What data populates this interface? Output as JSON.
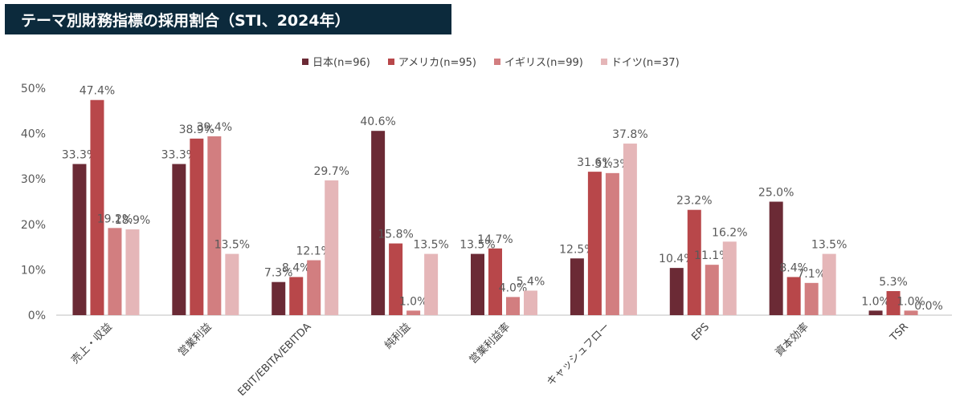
{
  "title": "テーマ別財務指標の採用割合（STI、2024年）",
  "chart_data": {
    "type": "bar",
    "title": "テーマ別財務指標の採用割合（STI、2024年）",
    "categories": [
      "売上・収益",
      "営業利益",
      "EBIT/EBITA/EBITDA",
      "純利益",
      "営業利益率",
      "キャッシュフロー",
      "EPS",
      "資本効率",
      "TSR"
    ],
    "ylim": [
      0,
      50
    ],
    "yticks": [
      "0%",
      "10%",
      "20%",
      "30%",
      "40%",
      "50%"
    ],
    "legend_position": "top",
    "series": [
      {
        "name": "日本(n=96)",
        "color": "#6b2a35",
        "values": [
          33.3,
          33.3,
          7.3,
          40.6,
          13.5,
          12.5,
          10.4,
          25.0,
          1.0
        ]
      },
      {
        "name": "アメリカ(n=95)",
        "color": "#b8474a",
        "values": [
          47.4,
          38.9,
          8.4,
          15.8,
          14.7,
          31.6,
          23.2,
          8.4,
          5.3
        ]
      },
      {
        "name": "イギリス(n=99)",
        "color": "#d27e80",
        "values": [
          19.2,
          39.4,
          12.1,
          1.0,
          4.0,
          31.3,
          11.1,
          7.1,
          1.0
        ]
      },
      {
        "name": "ドイツ(n=37)",
        "color": "#e5b6b8",
        "values": [
          18.9,
          13.5,
          29.7,
          13.5,
          5.4,
          37.8,
          16.2,
          13.5,
          0.0
        ]
      }
    ]
  }
}
